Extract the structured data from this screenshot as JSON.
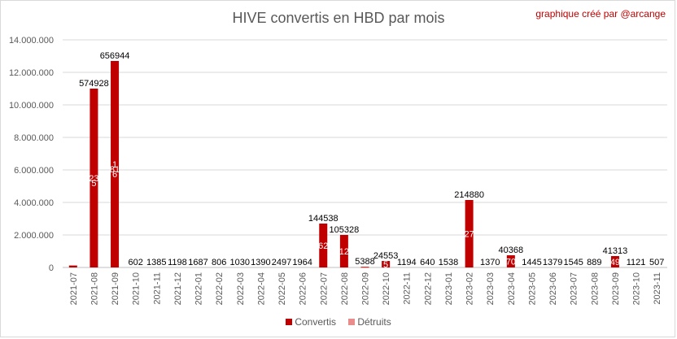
{
  "chart_data": {
    "type": "bar",
    "stacked": true,
    "title": "HIVE convertis en HBD par mois",
    "annotation": "graphique créé par @arcange",
    "categories": [
      "2021-07",
      "2021-08",
      "2021-09",
      "2021-10",
      "2021-11",
      "2021-12",
      "2022-01",
      "2022-02",
      "2022-03",
      "2022-04",
      "2022-05",
      "2022-06",
      "2022-07",
      "2022-08",
      "2022-09",
      "2022-10",
      "2022-11",
      "2022-12",
      "2023-01",
      "2023-02",
      "2023-03",
      "2023-04",
      "2023-05",
      "2023-06",
      "2023-07",
      "2023-08",
      "2023-09",
      "2023-10",
      "2023-11"
    ],
    "series": [
      {
        "name": "Convertis",
        "color": "#c00000",
        "values": [
          120000,
          11000000,
          12700000,
          0,
          0,
          0,
          0,
          0,
          0,
          0,
          0,
          0,
          2700000,
          2000000,
          40000,
          400000,
          0,
          0,
          0,
          4150000,
          0,
          750000,
          0,
          0,
          0,
          0,
          700000,
          0,
          0
        ]
      },
      {
        "name": "Détruits",
        "color": "#e88c8c",
        "values": [
          0,
          0,
          0,
          0,
          0,
          0,
          0,
          0,
          0,
          0,
          0,
          0,
          0,
          0,
          0,
          0,
          0,
          0,
          0,
          0,
          0,
          0,
          0,
          0,
          0,
          0,
          0,
          0,
          0
        ]
      }
    ],
    "data_labels": [
      "",
      "574928",
      "656944",
      "602",
      "1385",
      "1198",
      "1687",
      "806",
      "1030",
      "1390",
      "2497",
      "1964",
      "144538",
      "105328",
      "5388",
      "24553",
      "1194",
      "640",
      "1538",
      "214880",
      "1370",
      "40368",
      "1445",
      "1379",
      "1545",
      "889",
      "41313",
      "1121",
      "507"
    ],
    "inner_labels": [
      {
        "index": 1,
        "text": "23"
      },
      {
        "index": 1,
        "text": "5"
      },
      {
        "index": 2,
        "text": "1"
      },
      {
        "index": 2,
        "text": "81"
      },
      {
        "index": 2,
        "text": "6"
      },
      {
        "index": 12,
        "text": "62"
      },
      {
        "index": 13,
        "text": "12"
      },
      {
        "index": 15,
        "text": "5"
      },
      {
        "index": 19,
        "text": "27"
      },
      {
        "index": 21,
        "text": "70"
      },
      {
        "index": 26,
        "text": "49"
      }
    ],
    "y_ticks": [
      "0",
      "2.000.000",
      "4.000.000",
      "6.000.000",
      "8.000.000",
      "10.000.000",
      "12.000.000",
      "14.000.000"
    ],
    "ylim": [
      0,
      14000000
    ],
    "grid": true,
    "legend_position": "bottom"
  }
}
